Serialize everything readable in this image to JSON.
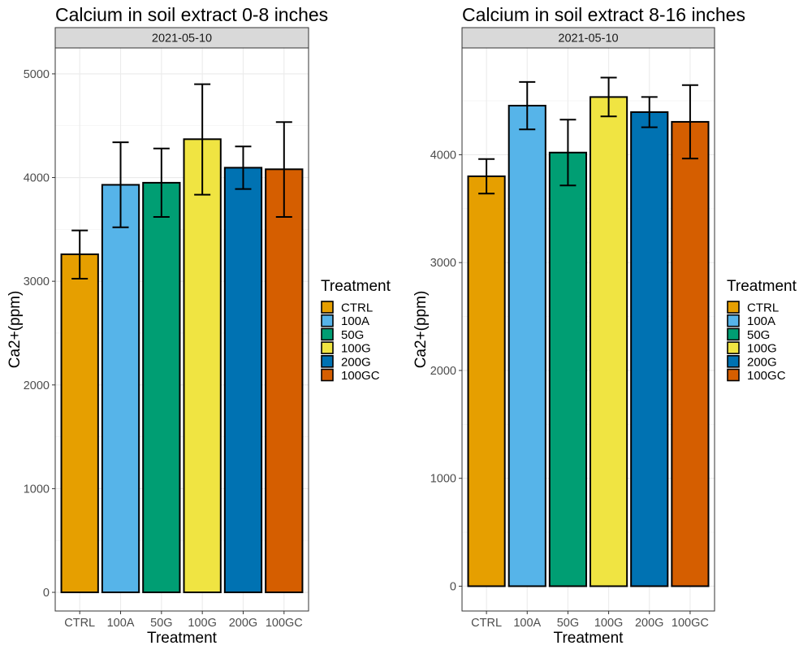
{
  "chart_data": [
    {
      "type": "bar",
      "title": "Calcium in soil extract 0-8 inches",
      "facet": "2021-05-10",
      "xlabel": "Treatment",
      "ylabel": "Ca2+(ppm)",
      "ylim": [
        -180,
        5250
      ],
      "yticks": [
        0,
        1000,
        2000,
        3000,
        4000,
        5000
      ],
      "grid": true,
      "categories": [
        "CTRL",
        "100A",
        "50G",
        "100G",
        "200G",
        "100GC"
      ],
      "values": [
        3260,
        3930,
        3950,
        4370,
        4095,
        4080
      ],
      "error_low": [
        3025,
        3520,
        3620,
        3835,
        3890,
        3620
      ],
      "error_high": [
        3490,
        4340,
        4280,
        4900,
        4300,
        4535
      ]
    },
    {
      "type": "bar",
      "title": "Calcium in soil extract 8-16 inches",
      "facet": "2021-05-10",
      "xlabel": "Treatment",
      "ylabel": "Ca2+(ppm)",
      "ylim": [
        -230,
        4990
      ],
      "yticks": [
        0,
        1000,
        2000,
        3000,
        4000
      ],
      "grid": true,
      "categories": [
        "CTRL",
        "100A",
        "50G",
        "100G",
        "200G",
        "100GC"
      ],
      "values": [
        3800,
        4455,
        4020,
        4535,
        4395,
        4305
      ],
      "error_low": [
        3640,
        4235,
        3715,
        4355,
        4255,
        3965
      ],
      "error_high": [
        3960,
        4675,
        4325,
        4715,
        4535,
        4645
      ]
    }
  ],
  "legend": {
    "title": "Treatment",
    "placement": "right",
    "entries": [
      "CTRL",
      "100A",
      "50G",
      "100G",
      "200G",
      "100GC"
    ]
  },
  "colors": {
    "CTRL": "#E69F00",
    "100A": "#56B4E9",
    "50G": "#009E73",
    "100G": "#F0E442",
    "200G": "#0072B2",
    "100GC": "#D55E00"
  }
}
